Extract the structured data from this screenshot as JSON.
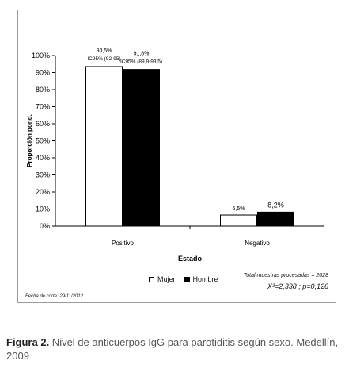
{
  "chart_data": {
    "type": "bar",
    "categories": [
      "Positivo",
      "Negativo"
    ],
    "series": [
      {
        "name": "Mujer",
        "values": [
          93.5,
          6.5
        ],
        "color": "#ffffff",
        "labels": [
          "93,5%",
          "6,5%"
        ],
        "ci": [
          "IC95% (92-95)",
          ""
        ]
      },
      {
        "name": "Hombre",
        "values": [
          91.8,
          8.2
        ],
        "color": "#000000",
        "labels": [
          "91,8%",
          "8,2%"
        ],
        "ci": [
          "IC95% (89,9-93,5)",
          ""
        ]
      }
    ],
    "xlabel": "Estado",
    "ylabel": "Proporción pond.",
    "ylim": [
      0,
      100
    ],
    "yticks": [
      "0%",
      "10%",
      "20%",
      "30%",
      "40%",
      "50%",
      "60%",
      "70%",
      "80%",
      "90%",
      "100%"
    ],
    "grid": false,
    "legend": "bottom-center"
  },
  "legend": {
    "mujer": "Mujer",
    "hombre": "Hombre"
  },
  "stats": {
    "total": "Total muestras procesadas = 2028",
    "test": "X²=2,338 ; p=0,126"
  },
  "cut_date": "Fecha de corte: 29/11/2012",
  "caption": {
    "label": "Figura 2.",
    "text": " Nivel de anticuerpos IgG para parotiditis según sexo. Medellín, 2009"
  }
}
